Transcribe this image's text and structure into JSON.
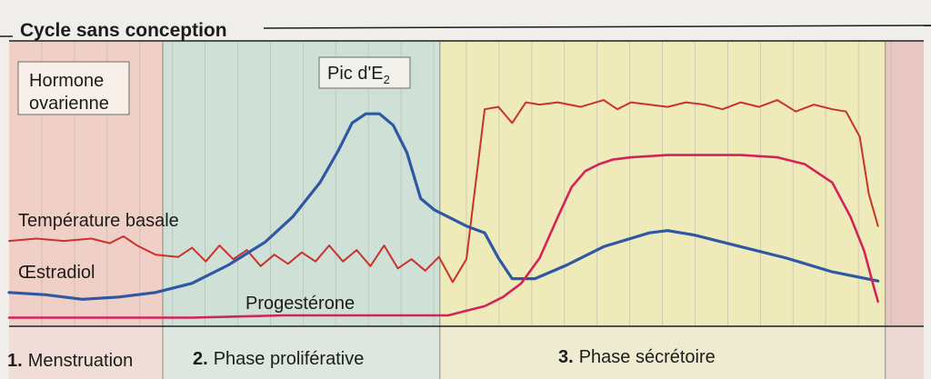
{
  "chart_data": {
    "type": "line",
    "title": "Cycle sans conception",
    "box_labels": {
      "hormone": [
        "Hormone",
        "ovarienne"
      ],
      "peak": "Pic d'E",
      "peak_sub": "2"
    },
    "phases": [
      {
        "number": "1.",
        "label": "Menstruation",
        "color": "#f0cfc6",
        "start": 0,
        "end": 0.168
      },
      {
        "number": "2.",
        "label": "Phase proliférative",
        "color": "#cfe1d6",
        "start": 0.168,
        "end": 0.471
      },
      {
        "number": "3.",
        "label": "Phase sécrétoire",
        "color": "#efeab9",
        "start": 0.471,
        "end": 0.958
      },
      {
        "number": "",
        "label": "",
        "color": "#e8c7c3",
        "start": 0.958,
        "end": 1.0
      }
    ],
    "x_range": [
      0,
      1
    ],
    "y_range": [
      0,
      1
    ],
    "series": [
      {
        "name": "Température basale",
        "color": "#c8332b",
        "x": [
          0,
          0.03,
          0.06,
          0.09,
          0.11,
          0.125,
          0.14,
          0.16,
          0.185,
          0.2,
          0.215,
          0.23,
          0.245,
          0.26,
          0.275,
          0.29,
          0.305,
          0.32,
          0.335,
          0.35,
          0.365,
          0.38,
          0.395,
          0.41,
          0.425,
          0.44,
          0.455,
          0.47,
          0.485,
          0.5,
          0.52,
          0.535,
          0.55,
          0.565,
          0.58,
          0.6,
          0.625,
          0.65,
          0.665,
          0.68,
          0.7,
          0.72,
          0.74,
          0.76,
          0.78,
          0.8,
          0.82,
          0.84,
          0.86,
          0.88,
          0.9,
          0.915,
          0.93,
          0.94,
          0.95
        ],
        "y": [
          0.345,
          0.355,
          0.345,
          0.355,
          0.335,
          0.365,
          0.325,
          0.285,
          0.275,
          0.315,
          0.255,
          0.325,
          0.265,
          0.305,
          0.235,
          0.285,
          0.245,
          0.295,
          0.255,
          0.325,
          0.255,
          0.305,
          0.235,
          0.325,
          0.225,
          0.265,
          0.215,
          0.275,
          0.165,
          0.265,
          0.92,
          0.93,
          0.86,
          0.95,
          0.94,
          0.95,
          0.93,
          0.96,
          0.92,
          0.95,
          0.94,
          0.93,
          0.95,
          0.94,
          0.92,
          0.95,
          0.93,
          0.96,
          0.91,
          0.94,
          0.92,
          0.91,
          0.8,
          0.55,
          0.41
        ]
      },
      {
        "name": "Œstradiol",
        "color": "#2e57a4",
        "x": [
          0,
          0.04,
          0.08,
          0.12,
          0.16,
          0.2,
          0.24,
          0.28,
          0.31,
          0.34,
          0.36,
          0.375,
          0.39,
          0.405,
          0.42,
          0.435,
          0.45,
          0.465,
          0.48,
          0.5,
          0.52,
          0.535,
          0.55,
          0.575,
          0.61,
          0.65,
          0.7,
          0.72,
          0.75,
          0.8,
          0.85,
          0.9,
          0.95
        ],
        "y": [
          0.12,
          0.11,
          0.09,
          0.1,
          0.12,
          0.16,
          0.24,
          0.34,
          0.45,
          0.6,
          0.74,
          0.86,
          0.9,
          0.9,
          0.85,
          0.73,
          0.53,
          0.48,
          0.45,
          0.41,
          0.38,
          0.27,
          0.18,
          0.18,
          0.24,
          0.32,
          0.38,
          0.39,
          0.37,
          0.32,
          0.27,
          0.21,
          0.17
        ]
      },
      {
        "name": "Progestérone",
        "color": "#d2245a",
        "x": [
          0,
          0.1,
          0.2,
          0.3,
          0.4,
          0.48,
          0.5,
          0.52,
          0.54,
          0.56,
          0.58,
          0.6,
          0.615,
          0.63,
          0.645,
          0.66,
          0.68,
          0.72,
          0.76,
          0.8,
          0.84,
          0.87,
          0.9,
          0.92,
          0.935,
          0.945,
          0.95
        ],
        "y": [
          0.01,
          0.01,
          0.01,
          0.02,
          0.02,
          0.02,
          0.04,
          0.06,
          0.1,
          0.16,
          0.27,
          0.45,
          0.58,
          0.65,
          0.68,
          0.7,
          0.71,
          0.72,
          0.72,
          0.72,
          0.71,
          0.68,
          0.6,
          0.45,
          0.3,
          0.15,
          0.08
        ]
      }
    ]
  }
}
